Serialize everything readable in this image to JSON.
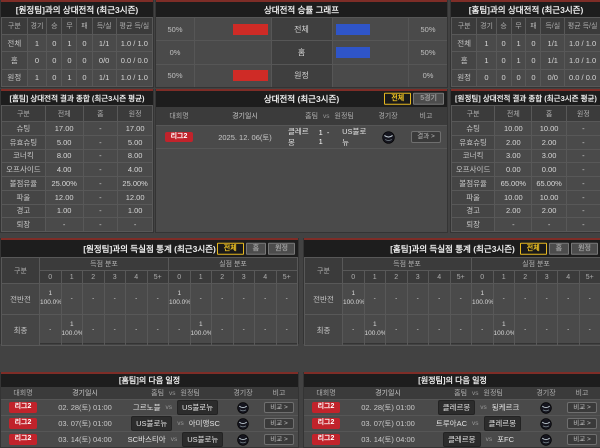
{
  "colors": {
    "accent_border": "#7e2d27",
    "bar_left": "#cf2b26",
    "bar_right": "#2f55c8",
    "badge_bg": "#c1232b",
    "toggle_active_text": "#f3c622"
  },
  "record_headers": [
    "구분",
    "경기",
    "승",
    "무",
    "패",
    "득/실",
    "평균 득/실"
  ],
  "top_left": {
    "title": "[원정팀]과의 상대전적 (최근3시즌)",
    "rows": [
      {
        "label": "전체",
        "cells": [
          "1",
          "0",
          "1",
          "0",
          "1/1",
          "1.0 / 1.0"
        ]
      },
      {
        "label": "홈",
        "cells": [
          "0",
          "0",
          "0",
          "0",
          "0/0",
          "0.0 / 0.0"
        ]
      },
      {
        "label": "원정",
        "cells": [
          "1",
          "0",
          "1",
          "0",
          "1/1",
          "1.0 / 1.0"
        ]
      }
    ]
  },
  "graph": {
    "title": "상대전적 승률 그래프",
    "rows": [
      {
        "label": "전체",
        "left_pct": "50%",
        "left_width": 50,
        "right_pct": "50%",
        "right_width": 50
      },
      {
        "label": "홈",
        "left_pct": "0%",
        "left_width": 0,
        "right_pct": "50%",
        "right_width": 50
      },
      {
        "label": "원정",
        "left_pct": "50%",
        "left_width": 50,
        "right_pct": "0%",
        "right_width": 0
      }
    ]
  },
  "top_right": {
    "title": "[홈팀]과의 상대전적 (최근3시즌)",
    "rows": [
      {
        "label": "전체",
        "cells": [
          "1",
          "0",
          "1",
          "0",
          "1/1",
          "1.0 / 1.0"
        ]
      },
      {
        "label": "홈",
        "cells": [
          "1",
          "0",
          "1",
          "0",
          "1/1",
          "1.0 / 1.0"
        ]
      },
      {
        "label": "원정",
        "cells": [
          "0",
          "0",
          "0",
          "0",
          "0/0",
          "0.0 / 0.0"
        ]
      }
    ]
  },
  "summary_headers": [
    "구분",
    "전체",
    "홈",
    "원정"
  ],
  "home_summary": {
    "title": "[홈팀] 상대전적 결과 종합 (최근3시즌 평균)",
    "rows": [
      {
        "label": "슈팅",
        "cells": [
          "17.00",
          "-",
          "17.00"
        ]
      },
      {
        "label": "유효슈팅",
        "cells": [
          "5.00",
          "-",
          "5.00"
        ]
      },
      {
        "label": "코너킥",
        "cells": [
          "8.00",
          "-",
          "8.00"
        ]
      },
      {
        "label": "오프사이드",
        "cells": [
          "4.00",
          "-",
          "4.00"
        ]
      },
      {
        "label": "볼점유율",
        "cells": [
          "25.00%",
          "-",
          "25.00%"
        ]
      },
      {
        "label": "파울",
        "cells": [
          "12.00",
          "-",
          "12.00"
        ]
      },
      {
        "label": "경고",
        "cells": [
          "1.00",
          "-",
          "1.00"
        ]
      },
      {
        "label": "퇴장",
        "cells": [
          "-",
          "-",
          "-"
        ]
      }
    ]
  },
  "away_summary": {
    "title": "[원정팀] 상대전적 결과 종합 (최근3시즌 평균)",
    "rows": [
      {
        "label": "슈팅",
        "cells": [
          "10.00",
          "10.00",
          "-"
        ]
      },
      {
        "label": "유효슈팅",
        "cells": [
          "2.00",
          "2.00",
          "-"
        ]
      },
      {
        "label": "코너킥",
        "cells": [
          "3.00",
          "3.00",
          "-"
        ]
      },
      {
        "label": "오프사이드",
        "cells": [
          "0.00",
          "0.00",
          "-"
        ]
      },
      {
        "label": "볼점유율",
        "cells": [
          "65.00%",
          "65.00%",
          "-"
        ]
      },
      {
        "label": "파울",
        "cells": [
          "10.00",
          "10.00",
          "-"
        ]
      },
      {
        "label": "경고",
        "cells": [
          "2.00",
          "2.00",
          "-"
        ]
      },
      {
        "label": "퇴장",
        "cells": [
          "-",
          "-",
          "-"
        ]
      }
    ]
  },
  "sched_headers": {
    "league": "대회명",
    "datetime": "경기일시",
    "home": "홈팀",
    "vs": "vs",
    "away": "원정팀",
    "stadium": "경기장",
    "note": "비고"
  },
  "h2h": {
    "title": "상대전적 (최근3시즌)",
    "toggle_all": "전체",
    "toggle_5": "5경기",
    "row": {
      "league": "리그2",
      "date": "2025. 12. 06(토)",
      "home": "클레르몽",
      "score": "1 - 1",
      "away": "US불로뉴",
      "note": "결과 >"
    }
  },
  "goals_left": {
    "title": "[원정팀]과의 득실점 통계 (최근3시즌)",
    "toggle_all": "전체",
    "toggle_home": "홈",
    "toggle_away": "원정",
    "col_label": "구분",
    "group_scored": "득점 분포",
    "group_conceded": "실점 분포",
    "bins": [
      "0",
      "1",
      "2",
      "3",
      "4",
      "5+"
    ],
    "rows": [
      {
        "label": "전반전",
        "scored": [
          "1\n100.0%",
          "-",
          "-",
          "-",
          "-",
          "-"
        ],
        "conceded": [
          "1\n100.0%",
          "-",
          "-",
          "-",
          "-",
          "-"
        ]
      },
      {
        "label": "최종",
        "scored": [
          "-",
          "1\n100.0%",
          "-",
          "-",
          "-",
          "-"
        ],
        "conceded": [
          "-",
          "1\n100.0%",
          "-",
          "-",
          "-",
          "-"
        ]
      }
    ]
  },
  "goals_right": {
    "title": "[홈팀]과의 득실점 통계 (최근3시즌)",
    "toggle_all": "전체",
    "toggle_home": "홈",
    "toggle_away": "원정",
    "col_label": "구분",
    "group_scored": "득점 분포",
    "group_conceded": "실점 분포",
    "bins": [
      "0",
      "1",
      "2",
      "3",
      "4",
      "5+"
    ],
    "rows": [
      {
        "label": "전반전",
        "scored": [
          "1\n100.0%",
          "-",
          "-",
          "-",
          "-",
          "-"
        ],
        "conceded": [
          "1\n100.0%",
          "-",
          "-",
          "-",
          "-",
          "-"
        ]
      },
      {
        "label": "최종",
        "scored": [
          "-",
          "1\n100.0%",
          "-",
          "-",
          "-",
          "-"
        ],
        "conceded": [
          "-",
          "1\n100.0%",
          "-",
          "-",
          "-",
          "-"
        ]
      }
    ]
  },
  "sched_left": {
    "title": "[홈팀]의 다음 일정",
    "rows": [
      {
        "league": "리그2",
        "date": "02. 28(토) 01:00",
        "home": "그르노블",
        "away": "US불로뉴",
        "note": "비교 >"
      },
      {
        "league": "리그2",
        "date": "03. 07(토) 01:00",
        "home": "US불로뉴",
        "away": "아미앵SC",
        "note": "비교 >"
      },
      {
        "league": "리그2",
        "date": "03. 14(토) 04:00",
        "home": "SC바스티아",
        "away": "US불로뉴",
        "note": "비교 >"
      }
    ]
  },
  "sched_right": {
    "title": "[원정팀]의 다음 일정",
    "rows": [
      {
        "league": "리그2",
        "date": "02. 28(토) 01:00",
        "home": "클레르몽",
        "away": "됭케르크",
        "note": "비교 >"
      },
      {
        "league": "리그2",
        "date": "03. 07(토) 01:00",
        "home": "트루아AC",
        "away": "클레르몽",
        "note": "비교 >"
      },
      {
        "league": "리그2",
        "date": "03. 14(토) 04:00",
        "home": "클레르몽",
        "away": "포FC",
        "note": "비교 >"
      }
    ]
  }
}
